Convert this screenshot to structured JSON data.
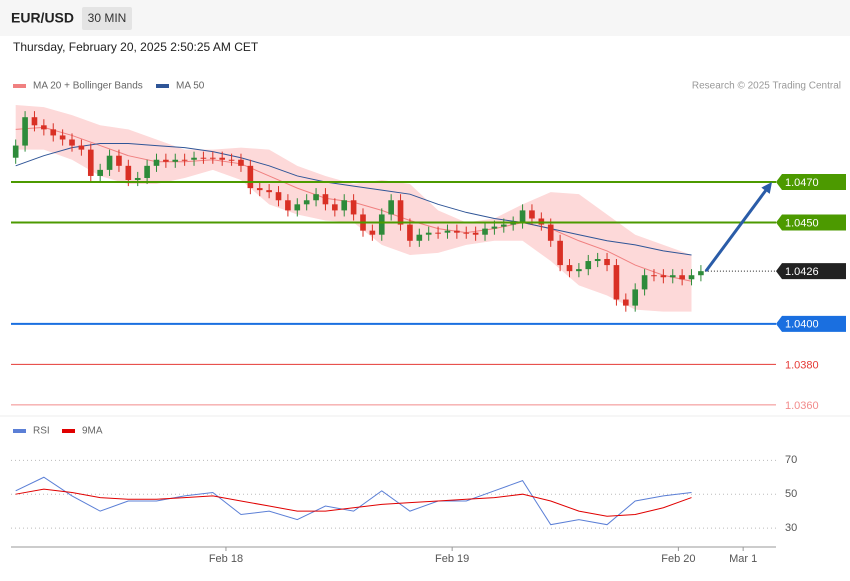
{
  "header": {
    "symbol": "EUR/USD",
    "interval": "30 MIN",
    "timestamp": "Thursday, February 20, 2025 2:50:25 AM CET",
    "note": "Research © 2025 Trading Central"
  },
  "chart_data": [
    {
      "type": "candlestick",
      "up_color": "#2e8b3a",
      "down_color": "#d93025",
      "open": [
        1.0482,
        1.0488,
        1.0502,
        1.0498,
        1.0496,
        1.0493,
        1.0491,
        1.0488,
        1.0486,
        1.0473,
        1.0476,
        1.0483,
        1.0478,
        1.0471,
        1.0472,
        1.0478,
        1.0481,
        1.048,
        1.0481,
        1.0481,
        1.0482,
        1.0482,
        1.0482,
        1.0481,
        1.0481,
        1.0478,
        1.0467,
        1.0466,
        1.0465,
        1.0461,
        1.0456,
        1.0459,
        1.0461,
        1.0464,
        1.0459,
        1.0456,
        1.0461,
        1.0454,
        1.0446,
        1.0444,
        1.0454,
        1.0461,
        1.0449,
        1.0441,
        1.0444,
        1.0445,
        1.0445,
        1.0446,
        1.0445,
        1.0445,
        1.0444,
        1.0447,
        1.0448,
        1.0449,
        1.045,
        1.0456,
        1.0452,
        1.0449,
        1.0441,
        1.0429,
        1.0426,
        1.0427,
        1.0431,
        1.0432,
        1.0429,
        1.0412,
        1.0409,
        1.0417,
        1.0424,
        1.0424,
        1.0423,
        1.0424,
        1.0422,
        1.0424
      ],
      "high": [
        1.0491,
        1.0505,
        1.0505,
        1.0501,
        1.0499,
        1.0496,
        1.0494,
        1.0491,
        1.0489,
        1.0479,
        1.0486,
        1.0486,
        1.0481,
        1.0475,
        1.0481,
        1.0484,
        1.0484,
        1.0484,
        1.0484,
        1.0485,
        1.0485,
        1.0485,
        1.0485,
        1.0484,
        1.0484,
        1.0481,
        1.047,
        1.0469,
        1.0468,
        1.0464,
        1.0462,
        1.0464,
        1.0467,
        1.0467,
        1.0462,
        1.0464,
        1.0464,
        1.0457,
        1.0449,
        1.0457,
        1.0464,
        1.0464,
        1.0452,
        1.0447,
        1.0448,
        1.0448,
        1.0449,
        1.0449,
        1.0448,
        1.0448,
        1.045,
        1.0451,
        1.0452,
        1.0453,
        1.0459,
        1.0459,
        1.0455,
        1.0452,
        1.0444,
        1.0432,
        1.043,
        1.0434,
        1.0435,
        1.0435,
        1.0432,
        1.0415,
        1.042,
        1.0427,
        1.0427,
        1.0427,
        1.0427,
        1.0427,
        1.0427,
        1.0429
      ],
      "low": [
        1.0479,
        1.0485,
        1.0495,
        1.0493,
        1.049,
        1.0488,
        1.0485,
        1.0483,
        1.047,
        1.047,
        1.0473,
        1.0475,
        1.0468,
        1.0468,
        1.0469,
        1.0475,
        1.0477,
        1.0477,
        1.0478,
        1.0478,
        1.0479,
        1.0479,
        1.0478,
        1.0478,
        1.0475,
        1.0464,
        1.0463,
        1.0462,
        1.0458,
        1.0453,
        1.0453,
        1.0456,
        1.0458,
        1.0456,
        1.0453,
        1.0453,
        1.0451,
        1.0443,
        1.0441,
        1.0441,
        1.0451,
        1.0446,
        1.0438,
        1.0438,
        1.0441,
        1.0442,
        1.0442,
        1.0442,
        1.0442,
        1.0441,
        1.0441,
        1.0444,
        1.0445,
        1.0446,
        1.0447,
        1.0449,
        1.0446,
        1.0438,
        1.0426,
        1.0423,
        1.0423,
        1.0424,
        1.0428,
        1.0426,
        1.0409,
        1.0406,
        1.0406,
        1.0414,
        1.0421,
        1.042,
        1.042,
        1.0419,
        1.0419,
        1.0421
      ],
      "close": [
        1.0488,
        1.0502,
        1.0498,
        1.0496,
        1.0493,
        1.0491,
        1.0488,
        1.0486,
        1.0473,
        1.0476,
        1.0483,
        1.0478,
        1.0471,
        1.0472,
        1.0478,
        1.0481,
        1.048,
        1.0481,
        1.0481,
        1.0482,
        1.0482,
        1.0482,
        1.0481,
        1.0481,
        1.0478,
        1.0467,
        1.0466,
        1.0465,
        1.0461,
        1.0456,
        1.0459,
        1.0461,
        1.0464,
        1.0459,
        1.0456,
        1.0461,
        1.0454,
        1.0446,
        1.0444,
        1.0454,
        1.0461,
        1.0449,
        1.0441,
        1.0444,
        1.0445,
        1.0445,
        1.0446,
        1.0445,
        1.0445,
        1.0444,
        1.0447,
        1.0448,
        1.0449,
        1.045,
        1.0456,
        1.0452,
        1.0449,
        1.0441,
        1.0429,
        1.0426,
        1.0427,
        1.0431,
        1.0432,
        1.0429,
        1.0412,
        1.0409,
        1.0417,
        1.0424,
        1.0424,
        1.0423,
        1.0424,
        1.0422,
        1.0424,
        1.0426
      ],
      "overlays": [
        {
          "name": "MA 20 + Bollinger Bands",
          "color": "#f08080",
          "band_color": "#fdd9d9",
          "x": [
            0,
            3,
            6,
            9,
            12,
            15,
            18,
            21,
            24,
            27,
            30,
            33,
            36,
            39,
            42,
            45,
            48,
            51,
            54,
            57,
            60,
            63,
            66,
            69,
            72
          ],
          "values": [
            1.0496,
            1.0497,
            1.0493,
            1.0488,
            1.0483,
            1.048,
            1.048,
            1.0481,
            1.0479,
            1.0473,
            1.0467,
            1.0462,
            1.046,
            1.0456,
            1.0451,
            1.0447,
            1.0445,
            1.0447,
            1.045,
            1.0447,
            1.0441,
            1.0436,
            1.0429,
            1.0424,
            1.0421
          ],
          "upper": [
            1.0508,
            1.0507,
            1.0503,
            1.0498,
            1.0496,
            1.0491,
            1.0486,
            1.0486,
            1.0487,
            1.0486,
            1.0478,
            1.0473,
            1.0469,
            1.0471,
            1.0469,
            1.0456,
            1.045,
            1.0452,
            1.0459,
            1.0465,
            1.0464,
            1.0454,
            1.0444,
            1.0439,
            1.0434
          ],
          "lower": [
            1.0486,
            1.0486,
            1.0481,
            1.0473,
            1.0469,
            1.0469,
            1.0472,
            1.0476,
            1.0471,
            1.0459,
            1.0454,
            1.0451,
            1.045,
            1.0439,
            1.0434,
            1.0435,
            1.0439,
            1.0441,
            1.0441,
            1.0431,
            1.0419,
            1.0414,
            1.0407,
            1.0406,
            1.0406
          ]
        },
        {
          "name": "MA 50",
          "color": "#2f5597",
          "x": [
            0,
            3,
            6,
            9,
            12,
            15,
            18,
            21,
            24,
            27,
            30,
            33,
            36,
            39,
            42,
            45,
            48,
            51,
            54,
            57,
            60,
            63,
            66,
            69,
            72
          ],
          "values": [
            1.0478,
            1.0483,
            1.0487,
            1.0489,
            1.0489,
            1.0488,
            1.0487,
            1.0485,
            1.0482,
            1.0478,
            1.0473,
            1.047,
            1.0468,
            1.0466,
            1.0464,
            1.0459,
            1.0455,
            1.0452,
            1.045,
            1.0447,
            1.0444,
            1.0441,
            1.0439,
            1.0436,
            1.0434
          ]
        }
      ],
      "levels": [
        {
          "value": 1.047,
          "label": "1.0470",
          "color": "#4c9a00",
          "box": true
        },
        {
          "value": 1.045,
          "label": "1.0450",
          "color": "#4c9a00",
          "box": true
        },
        {
          "value": 1.0426,
          "label": "1.0426",
          "color": "#222222",
          "box": true,
          "dotted": true
        },
        {
          "value": 1.04,
          "label": "1.0400",
          "color": "#1a6fe0",
          "box": true
        },
        {
          "value": 1.038,
          "label": "1.0380",
          "color": "#e53935",
          "box": false
        },
        {
          "value": 1.036,
          "label": "1.0360",
          "color": "#f28b8b",
          "box": false
        }
      ],
      "xlim": [
        -0.5,
        81
      ],
      "ylim": [
        1.0355,
        1.051
      ]
    },
    {
      "type": "line",
      "series": [
        {
          "name": "RSI",
          "color": "#5b7fd6",
          "x": [
            0,
            3,
            6,
            9,
            12,
            15,
            18,
            21,
            24,
            27,
            30,
            33,
            36,
            39,
            42,
            45,
            48,
            51,
            54,
            57,
            60,
            63,
            66,
            69,
            72
          ],
          "values": [
            52,
            60,
            49,
            40,
            46,
            46,
            49,
            51,
            38,
            40,
            35,
            43,
            40,
            52,
            40,
            46,
            46,
            52,
            58,
            32,
            35,
            32,
            46,
            49,
            51
          ]
        },
        {
          "name": "9MA",
          "color": "#e00000",
          "x": [
            0,
            3,
            6,
            9,
            12,
            15,
            18,
            21,
            24,
            27,
            30,
            33,
            36,
            39,
            42,
            45,
            48,
            51,
            54,
            57,
            60,
            63,
            66,
            69,
            72
          ],
          "values": [
            50,
            53,
            51,
            48,
            47,
            47,
            48,
            49,
            46,
            43,
            40,
            40,
            42,
            44,
            45,
            46,
            47,
            48,
            50,
            46,
            40,
            37,
            38,
            42,
            48
          ]
        }
      ],
      "xlim": [
        -0.5,
        81
      ],
      "ylim": [
        20,
        82
      ],
      "yticks": [
        30,
        50,
        70
      ],
      "xticks": [
        {
          "value": 22.4,
          "label": "Feb 18"
        },
        {
          "value": 46.5,
          "label": "Feb 19"
        },
        {
          "value": 70.6,
          "label": "Feb 20"
        },
        {
          "value": 77.5,
          "label": "Mar 1"
        }
      ]
    }
  ]
}
